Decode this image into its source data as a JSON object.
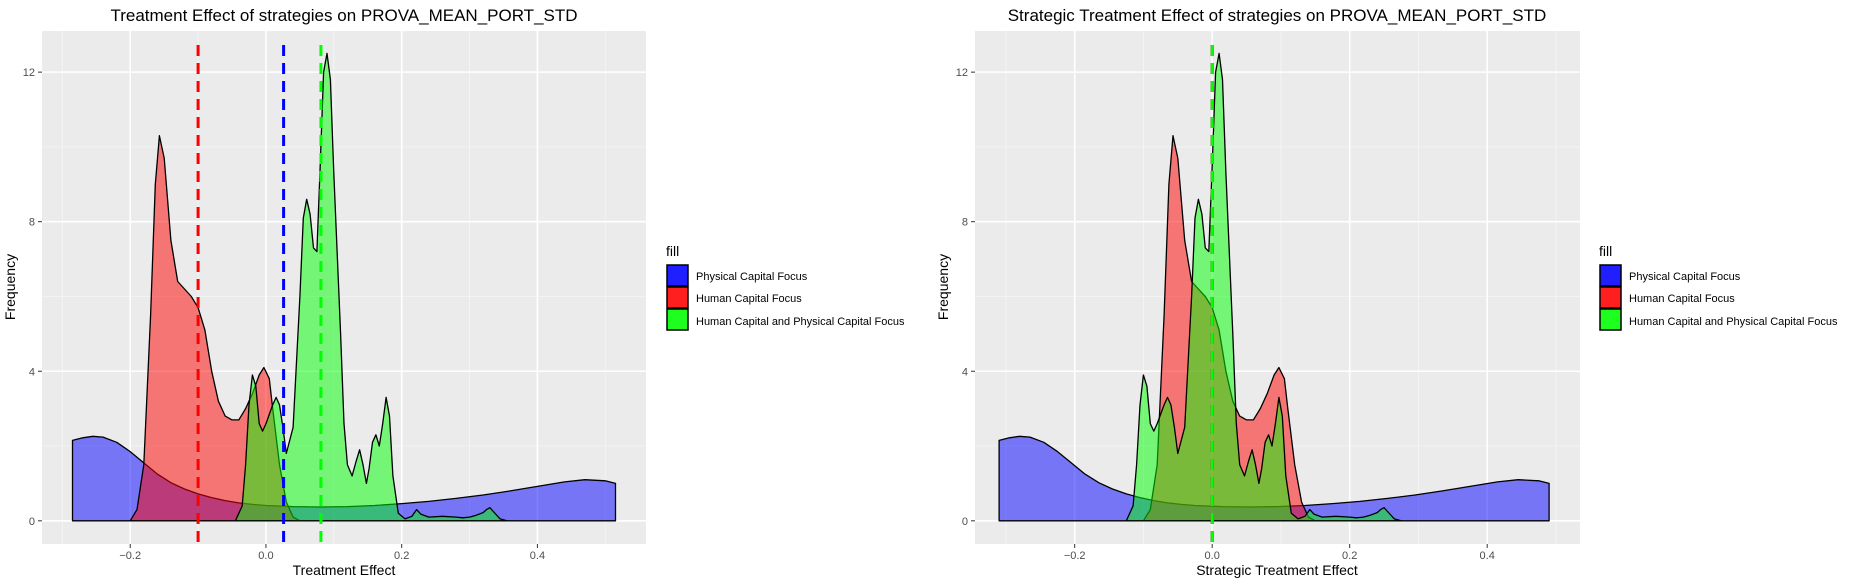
{
  "chart_data": [
    {
      "type": "area",
      "title": "Treatment Effect of strategies on PROVA_MEAN_PORT_STD",
      "xlabel": "Treatment Effect",
      "ylabel": "Frequency",
      "xlim": [
        -0.33,
        0.56
      ],
      "ylim": [
        -0.62,
        13.1
      ],
      "x_ticks": [
        -0.2,
        0.0,
        0.2,
        0.4
      ],
      "x_tick_labels": [
        "−0.2",
        "0.0",
        "0.2",
        "0.4"
      ],
      "y_ticks": [
        0,
        4,
        8,
        12
      ],
      "y_tick_labels": [
        "0",
        "4",
        "8",
        "12"
      ],
      "legend_title": "fill",
      "legend_position": "right",
      "grid": true,
      "series": [
        {
          "name": "Physical Capital Focus",
          "color": "#0000ff",
          "points": [
            [
              -0.285,
              2.15
            ],
            [
              -0.27,
              2.22
            ],
            [
              -0.255,
              2.26
            ],
            [
              -0.24,
              2.24
            ],
            [
              -0.22,
              2.1
            ],
            [
              -0.2,
              1.85
            ],
            [
              -0.18,
              1.55
            ],
            [
              -0.16,
              1.25
            ],
            [
              -0.14,
              1.02
            ],
            [
              -0.12,
              0.85
            ],
            [
              -0.1,
              0.72
            ],
            [
              -0.08,
              0.62
            ],
            [
              -0.06,
              0.54
            ],
            [
              -0.04,
              0.48
            ],
            [
              -0.02,
              0.44
            ],
            [
              0.0,
              0.41
            ],
            [
              0.04,
              0.38
            ],
            [
              0.08,
              0.37
            ],
            [
              0.12,
              0.38
            ],
            [
              0.16,
              0.41
            ],
            [
              0.2,
              0.46
            ],
            [
              0.24,
              0.52
            ],
            [
              0.28,
              0.6
            ],
            [
              0.32,
              0.69
            ],
            [
              0.36,
              0.8
            ],
            [
              0.4,
              0.92
            ],
            [
              0.44,
              1.04
            ],
            [
              0.47,
              1.1
            ],
            [
              0.5,
              1.07
            ],
            [
              0.515,
              1.0
            ]
          ],
          "mean": 0.026
        },
        {
          "name": "Human Capital Focus",
          "color": "#ff0000",
          "points": [
            [
              -0.2,
              0.0
            ],
            [
              -0.19,
              0.3
            ],
            [
              -0.18,
              1.5
            ],
            [
              -0.17,
              5.5
            ],
            [
              -0.163,
              9.0
            ],
            [
              -0.157,
              10.3
            ],
            [
              -0.15,
              9.7
            ],
            [
              -0.14,
              7.5
            ],
            [
              -0.13,
              6.4
            ],
            [
              -0.12,
              6.2
            ],
            [
              -0.11,
              6.0
            ],
            [
              -0.1,
              5.7
            ],
            [
              -0.09,
              5.1
            ],
            [
              -0.08,
              4.0
            ],
            [
              -0.07,
              3.2
            ],
            [
              -0.06,
              2.8
            ],
            [
              -0.05,
              2.7
            ],
            [
              -0.04,
              2.7
            ],
            [
              -0.03,
              3.0
            ],
            [
              -0.02,
              3.4
            ],
            [
              -0.01,
              3.9
            ],
            [
              -0.003,
              4.1
            ],
            [
              0.005,
              3.8
            ],
            [
              0.01,
              3.0
            ],
            [
              0.02,
              1.5
            ],
            [
              0.03,
              0.5
            ],
            [
              0.04,
              0.1
            ],
            [
              0.05,
              0.0
            ]
          ],
          "mean": -0.1
        },
        {
          "name": "Human Capital and Physical Capital Focus",
          "color": "#00ff00",
          "points": [
            [
              -0.045,
              0.0
            ],
            [
              -0.035,
              0.4
            ],
            [
              -0.03,
              1.5
            ],
            [
              -0.025,
              3.1
            ],
            [
              -0.02,
              3.9
            ],
            [
              -0.015,
              3.6
            ],
            [
              -0.01,
              2.6
            ],
            [
              -0.005,
              2.4
            ],
            [
              0.0,
              2.6
            ],
            [
              0.01,
              3.1
            ],
            [
              0.015,
              3.3
            ],
            [
              0.02,
              3.1
            ],
            [
              0.025,
              2.5
            ],
            [
              0.03,
              1.8
            ],
            [
              0.04,
              2.5
            ],
            [
              0.05,
              6.0
            ],
            [
              0.055,
              8.1
            ],
            [
              0.06,
              8.6
            ],
            [
              0.065,
              8.2
            ],
            [
              0.07,
              7.3
            ],
            [
              0.075,
              7.2
            ],
            [
              0.08,
              9.5
            ],
            [
              0.085,
              12.0
            ],
            [
              0.09,
              12.5
            ],
            [
              0.095,
              11.8
            ],
            [
              0.1,
              9.3
            ],
            [
              0.11,
              5.0
            ],
            [
              0.115,
              2.6
            ],
            [
              0.12,
              1.5
            ],
            [
              0.127,
              1.2
            ],
            [
              0.133,
              1.6
            ],
            [
              0.138,
              1.9
            ],
            [
              0.143,
              1.5
            ],
            [
              0.148,
              1.0
            ],
            [
              0.152,
              1.4
            ],
            [
              0.157,
              2.1
            ],
            [
              0.162,
              2.3
            ],
            [
              0.167,
              2.0
            ],
            [
              0.172,
              2.6
            ],
            [
              0.177,
              3.3
            ],
            [
              0.182,
              2.8
            ],
            [
              0.187,
              1.2
            ],
            [
              0.195,
              0.2
            ],
            [
              0.205,
              0.05
            ],
            [
              0.215,
              0.12
            ],
            [
              0.222,
              0.3
            ],
            [
              0.228,
              0.18
            ],
            [
              0.24,
              0.1
            ],
            [
              0.26,
              0.12
            ],
            [
              0.28,
              0.1
            ],
            [
              0.29,
              0.08
            ],
            [
              0.3,
              0.1
            ],
            [
              0.31,
              0.15
            ],
            [
              0.32,
              0.22
            ],
            [
              0.325,
              0.3
            ],
            [
              0.33,
              0.35
            ],
            [
              0.335,
              0.25
            ],
            [
              0.345,
              0.05
            ],
            [
              0.355,
              0.0
            ]
          ],
          "mean": 0.081
        }
      ]
    },
    {
      "type": "area",
      "title": "Strategic Treatment Effect of strategies on PROVA_MEAN_PORT_STD",
      "xlabel": "Strategic Treatment Effect",
      "ylabel": "Frequency",
      "xlim": [
        -0.345,
        0.535
      ],
      "ylim": [
        -0.62,
        13.1
      ],
      "x_ticks": [
        -0.2,
        0.0,
        0.2,
        0.4
      ],
      "x_tick_labels": [
        "−0.2",
        "0.0",
        "0.2",
        "0.4"
      ],
      "y_ticks": [
        0,
        4,
        8,
        12
      ],
      "y_tick_labels": [
        "0",
        "4",
        "8",
        "12"
      ],
      "legend_title": "fill",
      "legend_position": "right",
      "grid": true,
      "series": [
        {
          "name": "Physical Capital Focus",
          "color": "#0000ff",
          "points": [
            [
              -0.31,
              2.15
            ],
            [
              -0.295,
              2.22
            ],
            [
              -0.28,
              2.26
            ],
            [
              -0.265,
              2.24
            ],
            [
              -0.245,
              2.1
            ],
            [
              -0.225,
              1.85
            ],
            [
              -0.205,
              1.55
            ],
            [
              -0.185,
              1.25
            ],
            [
              -0.165,
              1.02
            ],
            [
              -0.145,
              0.85
            ],
            [
              -0.125,
              0.72
            ],
            [
              -0.105,
              0.62
            ],
            [
              -0.085,
              0.54
            ],
            [
              -0.065,
              0.48
            ],
            [
              -0.045,
              0.44
            ],
            [
              -0.025,
              0.41
            ],
            [
              0.015,
              0.38
            ],
            [
              0.055,
              0.37
            ],
            [
              0.095,
              0.38
            ],
            [
              0.135,
              0.41
            ],
            [
              0.175,
              0.46
            ],
            [
              0.215,
              0.52
            ],
            [
              0.255,
              0.6
            ],
            [
              0.295,
              0.69
            ],
            [
              0.335,
              0.8
            ],
            [
              0.375,
              0.92
            ],
            [
              0.415,
              1.04
            ],
            [
              0.445,
              1.1
            ],
            [
              0.475,
              1.07
            ],
            [
              0.49,
              1.0
            ]
          ],
          "mean": 0.0
        },
        {
          "name": "Human Capital Focus",
          "color": "#ff0000",
          "points": [
            [
              -0.1,
              0.0
            ],
            [
              -0.09,
              0.3
            ],
            [
              -0.08,
              1.5
            ],
            [
              -0.07,
              5.5
            ],
            [
              -0.063,
              9.0
            ],
            [
              -0.057,
              10.3
            ],
            [
              -0.05,
              9.7
            ],
            [
              -0.04,
              7.5
            ],
            [
              -0.03,
              6.4
            ],
            [
              -0.02,
              6.2
            ],
            [
              -0.01,
              6.0
            ],
            [
              0.0,
              5.7
            ],
            [
              0.01,
              5.1
            ],
            [
              0.02,
              4.0
            ],
            [
              0.03,
              3.2
            ],
            [
              0.04,
              2.8
            ],
            [
              0.05,
              2.7
            ],
            [
              0.06,
              2.7
            ],
            [
              0.07,
              3.0
            ],
            [
              0.08,
              3.4
            ],
            [
              0.09,
              3.9
            ],
            [
              0.097,
              4.1
            ],
            [
              0.105,
              3.8
            ],
            [
              0.11,
              3.0
            ],
            [
              0.12,
              1.5
            ],
            [
              0.13,
              0.5
            ],
            [
              0.14,
              0.1
            ],
            [
              0.15,
              0.0
            ]
          ],
          "mean": 0.0
        },
        {
          "name": "Human Capital and Physical Capital Focus",
          "color": "#00ff00",
          "points": [
            [
              -0.125,
              0.0
            ],
            [
              -0.115,
              0.4
            ],
            [
              -0.11,
              1.5
            ],
            [
              -0.105,
              3.1
            ],
            [
              -0.1,
              3.9
            ],
            [
              -0.095,
              3.6
            ],
            [
              -0.09,
              2.6
            ],
            [
              -0.085,
              2.4
            ],
            [
              -0.08,
              2.6
            ],
            [
              -0.07,
              3.1
            ],
            [
              -0.065,
              3.3
            ],
            [
              -0.06,
              3.1
            ],
            [
              -0.055,
              2.5
            ],
            [
              -0.05,
              1.8
            ],
            [
              -0.04,
              2.5
            ],
            [
              -0.03,
              6.0
            ],
            [
              -0.025,
              8.1
            ],
            [
              -0.02,
              8.6
            ],
            [
              -0.015,
              8.2
            ],
            [
              -0.01,
              7.3
            ],
            [
              -0.005,
              7.2
            ],
            [
              0.0,
              9.5
            ],
            [
              0.005,
              12.0
            ],
            [
              0.01,
              12.5
            ],
            [
              0.015,
              11.8
            ],
            [
              0.02,
              9.3
            ],
            [
              0.03,
              5.0
            ],
            [
              0.035,
              2.6
            ],
            [
              0.04,
              1.5
            ],
            [
              0.047,
              1.2
            ],
            [
              0.053,
              1.6
            ],
            [
              0.058,
              1.9
            ],
            [
              0.063,
              1.5
            ],
            [
              0.068,
              1.0
            ],
            [
              0.072,
              1.4
            ],
            [
              0.077,
              2.1
            ],
            [
              0.082,
              2.3
            ],
            [
              0.087,
              2.0
            ],
            [
              0.092,
              2.6
            ],
            [
              0.097,
              3.3
            ],
            [
              0.102,
              2.8
            ],
            [
              0.107,
              1.2
            ],
            [
              0.115,
              0.2
            ],
            [
              0.125,
              0.05
            ],
            [
              0.135,
              0.12
            ],
            [
              0.142,
              0.3
            ],
            [
              0.148,
              0.18
            ],
            [
              0.16,
              0.1
            ],
            [
              0.18,
              0.12
            ],
            [
              0.2,
              0.1
            ],
            [
              0.21,
              0.08
            ],
            [
              0.22,
              0.1
            ],
            [
              0.23,
              0.15
            ],
            [
              0.24,
              0.22
            ],
            [
              0.245,
              0.3
            ],
            [
              0.25,
              0.35
            ],
            [
              0.255,
              0.25
            ],
            [
              0.265,
              0.05
            ],
            [
              0.275,
              0.0
            ]
          ],
          "mean": 0.0
        }
      ]
    }
  ]
}
